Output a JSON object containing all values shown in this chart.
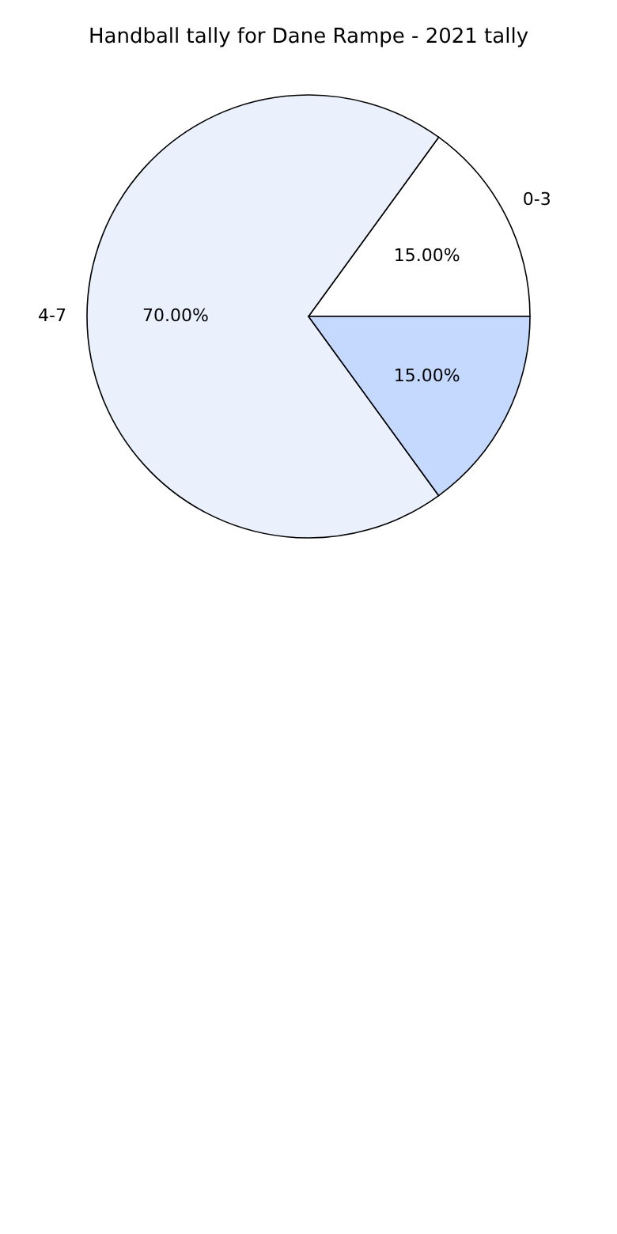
{
  "chart_data": {
    "type": "pie",
    "title": "Handball tally for Dane Rampe - 2021 tally",
    "categories": [
      "0-3",
      "4-7",
      null
    ],
    "values": [
      15,
      70,
      15
    ],
    "colors": [
      "#ffffff",
      "#eaf1fd",
      "#c5d9ff"
    ],
    "value_labels": [
      "15.00%",
      "70.00%",
      "15.00%"
    ],
    "legend": false
  }
}
